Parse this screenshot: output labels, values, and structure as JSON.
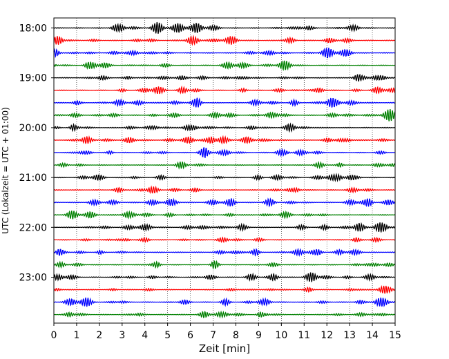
{
  "chart_data": {
    "type": "line",
    "title": "",
    "xlabel": "Zeit  [min]",
    "ylabel": "UTC (Lokalzeit = UTC + 01:00)",
    "xlim": [
      0,
      15
    ],
    "x_ticks": [
      "0",
      "1",
      "2",
      "3",
      "4",
      "5",
      "6",
      "7",
      "8",
      "9",
      "10",
      "11",
      "12",
      "13",
      "14",
      "15"
    ],
    "y_ticks": [
      "18:00",
      "19:00",
      "20:00",
      "21:00",
      "22:00",
      "23:00"
    ],
    "grid_x": "dotted",
    "trace_minutes": 15,
    "rows": [
      "18:00",
      "18:15",
      "18:30",
      "18:45",
      "19:00",
      "19:15",
      "19:30",
      "19:45",
      "20:00",
      "20:15",
      "20:30",
      "20:45",
      "21:00",
      "21:15",
      "21:30",
      "21:45",
      "22:00",
      "22:15",
      "22:30",
      "22:45",
      "23:00",
      "23:15",
      "23:30",
      "23:45"
    ],
    "colors": [
      "#000000",
      "#ff0000",
      "#0000ff",
      "#008000"
    ]
  }
}
